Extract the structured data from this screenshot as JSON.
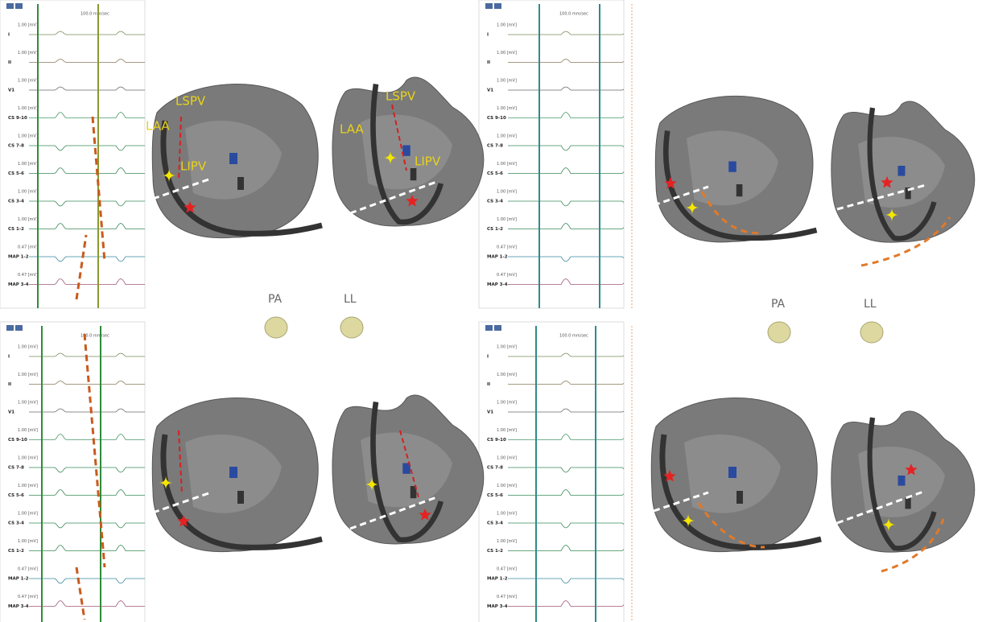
{
  "panels": [
    {
      "speed": "100.0 mm/sec",
      "channels": [
        {
          "name": "I",
          "gain": "1.00 [mV]"
        },
        {
          "name": "II",
          "gain": "1.00 [mV]"
        },
        {
          "name": "V1",
          "gain": "1.00 [mV]"
        },
        {
          "name": "CS 9-10",
          "gain": "1.00 [mV]"
        },
        {
          "name": "CS 7-8",
          "gain": "1.00 [mV]"
        },
        {
          "name": "CS 5-6",
          "gain": "1.00 [mV]"
        },
        {
          "name": "CS 3-4",
          "gain": "1.00 [mV]"
        },
        {
          "name": "CS 1-2",
          "gain": "1.00 [mV]"
        },
        {
          "name": "MAP 1-2",
          "gain": "0.47 [mV]"
        },
        {
          "name": "MAP 3-4",
          "gain": "0.47 [mV]"
        }
      ]
    },
    {
      "speed": "100.0 mm/sec",
      "channels": [
        {
          "name": "I",
          "gain": "1.00 [mV]"
        },
        {
          "name": "II",
          "gain": "1.00 [mV]"
        },
        {
          "name": "V1",
          "gain": "1.00 [mV]"
        },
        {
          "name": "CS 9-10",
          "gain": "1.00 [mV]"
        },
        {
          "name": "CS 7-8",
          "gain": "1.00 [mV]"
        },
        {
          "name": "CS 5-6",
          "gain": "1.00 [mV]"
        },
        {
          "name": "CS 3-4",
          "gain": "1.00 [mV]"
        },
        {
          "name": "CS 1-2",
          "gain": "1.00 [mV]"
        },
        {
          "name": "MAP 1-2",
          "gain": "0.47 [mV]"
        },
        {
          "name": "MAP 3-4",
          "gain": "0.47 [mV]"
        }
      ]
    },
    {
      "speed": "100.0 mm/sec",
      "channels": [
        {
          "name": "I",
          "gain": "1.00 [mV]"
        },
        {
          "name": "II",
          "gain": "1.00 [mV]"
        },
        {
          "name": "V1",
          "gain": "1.00 [mV]"
        },
        {
          "name": "CS 9-10",
          "gain": "1.00 [mV]"
        },
        {
          "name": "CS 7-8",
          "gain": "1.00 [mV]"
        },
        {
          "name": "CS 5-6",
          "gain": "1.00 [mV]"
        },
        {
          "name": "CS 3-4",
          "gain": "1.00 [mV]"
        },
        {
          "name": "CS 1-2",
          "gain": "1.00 [mV]"
        },
        {
          "name": "MAP 1-2",
          "gain": "0.47 [mV]"
        },
        {
          "name": "MAP 3-4",
          "gain": "0.47 [mV]"
        }
      ]
    },
    {
      "speed": "100.0 mm/sec",
      "channels": [
        {
          "name": "I",
          "gain": "1.00 [mV]"
        },
        {
          "name": "II",
          "gain": "1.00 [mV]"
        },
        {
          "name": "V1",
          "gain": "1.00 [mV]"
        },
        {
          "name": "CS 9-10",
          "gain": "1.00 [mV]"
        },
        {
          "name": "CS 7-8",
          "gain": "1.00 [mV]"
        },
        {
          "name": "CS 5-6",
          "gain": "1.00 [mV]"
        },
        {
          "name": "CS 3-4",
          "gain": "1.00 [mV]"
        },
        {
          "name": "CS 1-2",
          "gain": "1.00 [mV]"
        },
        {
          "name": "MAP 1-2",
          "gain": "0.47 [mV]"
        },
        {
          "name": "MAP 3-4",
          "gain": "0.47 [mV]"
        }
      ]
    }
  ],
  "anatomy_labels": {
    "pa_view": [
      "LSPV",
      "LAA",
      "LIPV"
    ],
    "ll_view": [
      "LSPV",
      "LAA",
      "LIPV"
    ]
  },
  "orientation_labels": [
    "PA",
    "LL",
    "PA",
    "LL"
  ]
}
